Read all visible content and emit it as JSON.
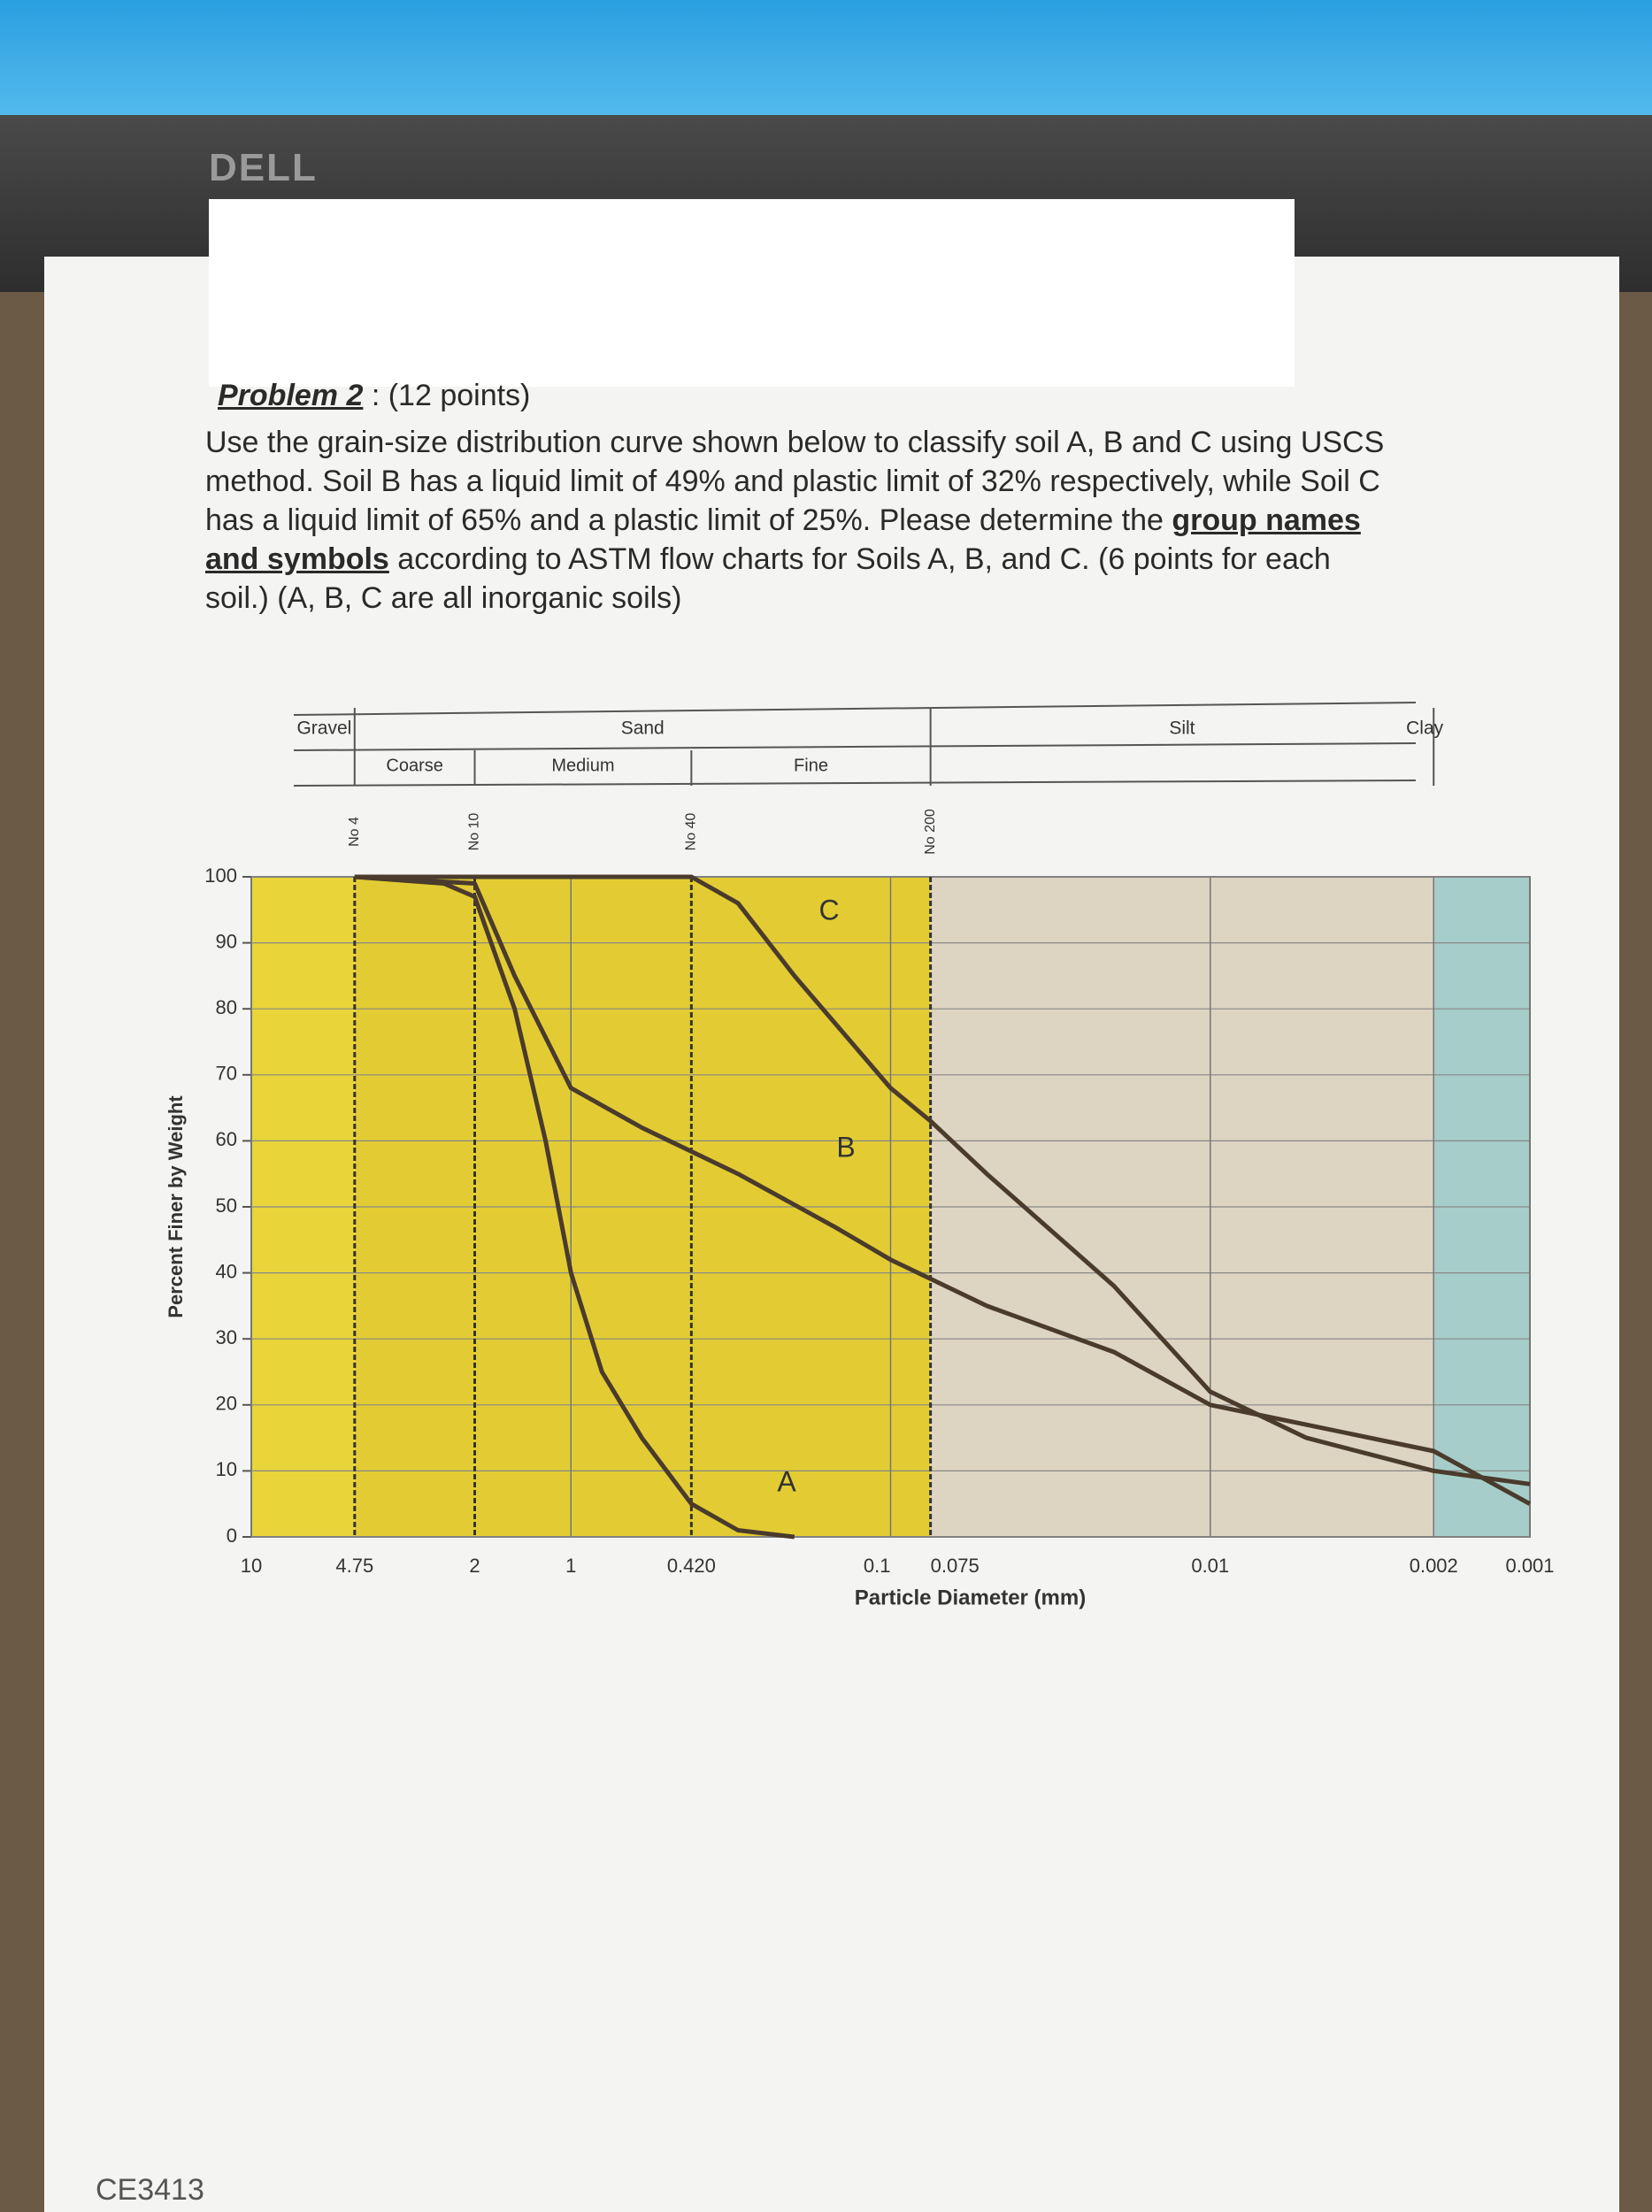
{
  "document": {
    "brand": "DELL",
    "problem": {
      "number": "Problem 2",
      "points": ": (12 points)",
      "text": [
        "Use the grain-size distribution curve shown below to classify soil A, B and C using USCS method.  Soil B has a liquid limit of 49% and plastic limit of 32% respectively, while Soil C has a liquid limit of 65% and a plastic limit of 25%.  Please determine the ",
        "group names and symbols",
        " according to ASTM flow charts for Soils A, B, and C. (6 points for each soil.) (A, B, C are all inorganic soils)"
      ]
    },
    "course": "CE3413"
  },
  "chart_data": {
    "type": "line",
    "x_label": "Particle Diameter (mm)",
    "y_label": "Percent Finer by Weight",
    "log_x": true,
    "grid": true,
    "xlim": [
      10,
      0.001
    ],
    "ylim": [
      0,
      100
    ],
    "xticks": [
      10,
      4.75,
      2,
      1,
      {
        "value": 0.42,
        "label": "0.420"
      },
      0.1,
      0.075,
      0.01,
      0.002,
      0.001
    ],
    "yticks": [
      0,
      10,
      20,
      30,
      40,
      50,
      60,
      70,
      80,
      90,
      100
    ],
    "soil_classes": [
      "Gravel",
      "Sand",
      "Silt",
      "Clay"
    ],
    "sand_classes": [
      "Coarse",
      "Medium",
      "Fine"
    ],
    "sieves": [
      "No 4",
      "No 10",
      "No 40",
      "No 200"
    ],
    "series": [
      {
        "name": "A",
        "color": "#4a3b2c",
        "x": [
          4.75,
          2.5,
          2,
          1.5,
          1.2,
          1,
          0.8,
          0.6,
          0.42,
          0.3,
          0.2
        ],
        "values": [
          100,
          99,
          97,
          80,
          60,
          40,
          25,
          15,
          5,
          1,
          0
        ]
      },
      {
        "name": "B",
        "color": "#4a3b2c",
        "x": [
          4.75,
          2,
          1.5,
          1,
          0.6,
          0.3,
          0.15,
          0.1,
          0.05,
          0.02,
          0.01,
          0.005,
          0.002,
          0.001
        ],
        "values": [
          100,
          99,
          85,
          68,
          62,
          55,
          47,
          42,
          35,
          28,
          20,
          17,
          13,
          5
        ]
      },
      {
        "name": "C",
        "color": "#4a3b2c",
        "x": [
          4.75,
          0.42,
          0.3,
          0.2,
          0.1,
          0.075,
          0.05,
          0.02,
          0.01,
          0.005,
          0.002,
          0.001
        ],
        "values": [
          100,
          100,
          96,
          85,
          68,
          63,
          55,
          38,
          22,
          15,
          10,
          8
        ]
      }
    ]
  }
}
